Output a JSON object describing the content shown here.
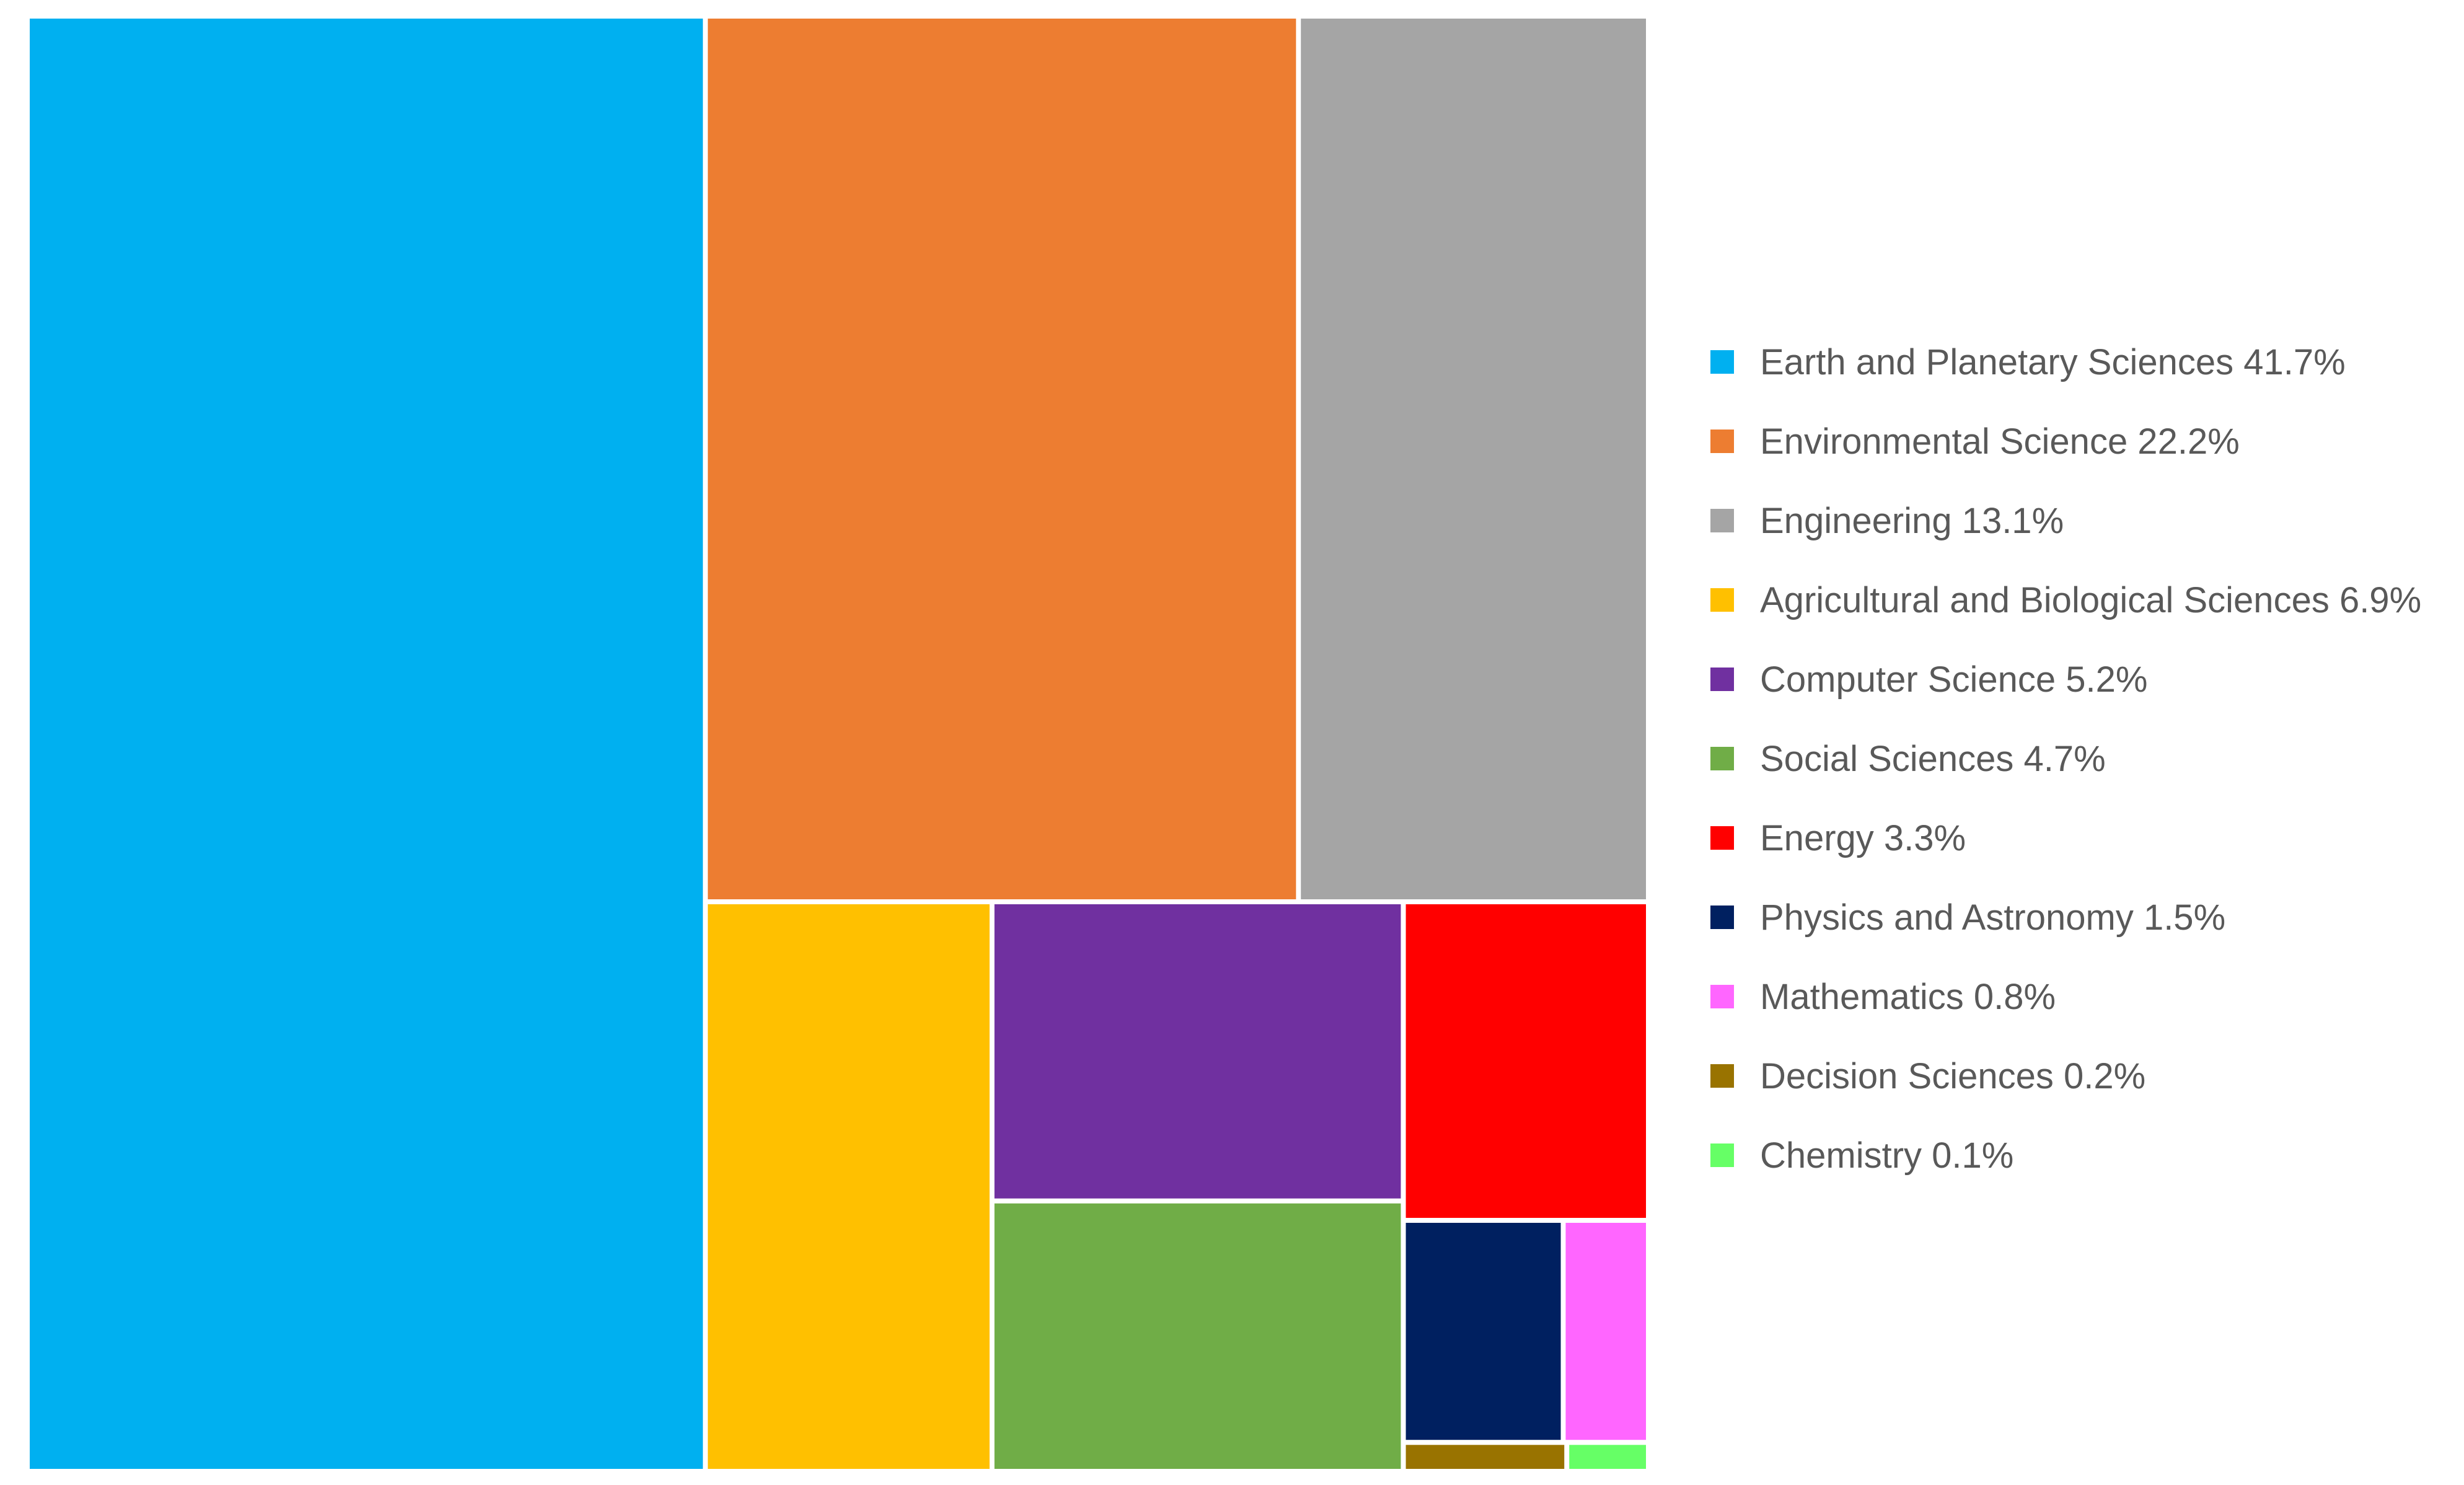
{
  "chart_data": {
    "type": "treemap",
    "title": "",
    "legend_position": "right",
    "items": [
      {
        "name": "Earth and Planetary Sciences",
        "value": 41.7,
        "label": "Earth and Planetary Sciences 41.7%",
        "color": "#00B0F0"
      },
      {
        "name": "Environmental Science",
        "value": 22.2,
        "label": "Environmental Science 22.2%",
        "color": "#ED7D31"
      },
      {
        "name": "Engineering",
        "value": 13.1,
        "label": "Engineering 13.1%",
        "color": "#A5A5A5"
      },
      {
        "name": "Agricultural and Biological Sciences",
        "value": 6.9,
        "label": "Agricultural and Biological Sciences 6.9%",
        "color": "#FFC000"
      },
      {
        "name": "Computer Science",
        "value": 5.2,
        "label": "Computer Science 5.2%",
        "color": "#7030A0"
      },
      {
        "name": "Social Sciences",
        "value": 4.7,
        "label": "Social Sciences 4.7%",
        "color": "#70AD47"
      },
      {
        "name": "Energy",
        "value": 3.3,
        "label": "Energy 3.3%",
        "color": "#FF0000"
      },
      {
        "name": "Physics and Astronomy",
        "value": 1.5,
        "label": "Physics and Astronomy 1.5%",
        "color": "#002060"
      },
      {
        "name": "Mathematics",
        "value": 0.8,
        "label": "Mathematics 0.8%",
        "color": "#FF66FF"
      },
      {
        "name": "Decision Sciences",
        "value": 0.2,
        "label": "Decision Sciences 0.2%",
        "color": "#997300"
      },
      {
        "name": "Chemistry",
        "value": 0.1,
        "label": "Chemistry 0.1%",
        "color": "#66FF66"
      }
    ]
  }
}
